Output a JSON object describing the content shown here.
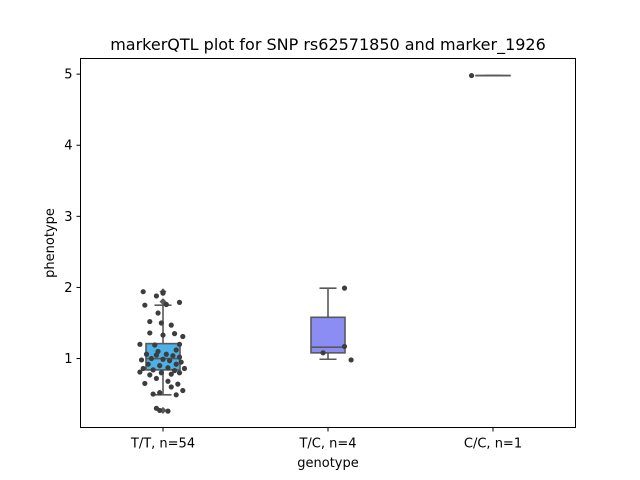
{
  "chart_data": {
    "type": "box",
    "title": "markerQTL plot for SNP rs62571850 and marker_1926",
    "xlabel": "genotype",
    "ylabel": "phenotype",
    "categories": [
      "T/T, n=54",
      "T/C, n=4",
      "C/C, n=1"
    ],
    "yticks": [
      1,
      2,
      3,
      4,
      5
    ],
    "ylim": [
      0.03,
      5.22
    ],
    "grid": false,
    "legend": "none",
    "box_colors": [
      "#4cb1e6",
      "#8c8cf5",
      "#8c8cf5"
    ],
    "edge_color": "#595959",
    "point_color": "#3d3d3d",
    "boxes": [
      {
        "q1": 0.84,
        "median": 1.0,
        "q3": 1.21,
        "whisker_low": 0.49,
        "whisker_high": 1.75,
        "outliers": [
          0.27,
          1.8,
          1.94
        ]
      },
      {
        "q1": 1.08,
        "median": 1.16,
        "q3": 1.58,
        "whisker_low": 0.99,
        "whisker_high": 1.99,
        "outliers": []
      },
      {
        "q1": 4.98,
        "median": 4.98,
        "q3": 4.98,
        "whisker_low": 4.98,
        "whisker_high": 4.98,
        "outliers": []
      }
    ],
    "points": [
      [
        {
          "x": -0.12,
          "y": 1.94
        },
        {
          "x": 0.0,
          "y": 1.92
        },
        {
          "x": -0.04,
          "y": 1.88
        },
        {
          "x": 0.1,
          "y": 1.79
        },
        {
          "x": -0.11,
          "y": 1.75
        },
        {
          "x": 0.02,
          "y": 1.76
        },
        {
          "x": -0.03,
          "y": 1.64
        },
        {
          "x": -0.08,
          "y": 1.52
        },
        {
          "x": -0.01,
          "y": 1.5
        },
        {
          "x": 0.05,
          "y": 1.47
        },
        {
          "x": -0.08,
          "y": 1.36
        },
        {
          "x": 0.07,
          "y": 1.35
        },
        {
          "x": 0.12,
          "y": 1.31
        },
        {
          "x": 0.0,
          "y": 1.33
        },
        {
          "x": -0.14,
          "y": 1.2
        },
        {
          "x": -0.05,
          "y": 1.19
        },
        {
          "x": 0.1,
          "y": 1.2
        },
        {
          "x": -0.03,
          "y": 1.1
        },
        {
          "x": 0.08,
          "y": 1.12
        },
        {
          "x": -0.1,
          "y": 1.06
        },
        {
          "x": -0.04,
          "y": 1.05
        },
        {
          "x": 0.02,
          "y": 1.06
        },
        {
          "x": 0.06,
          "y": 1.04
        },
        {
          "x": 0.1,
          "y": 1.02
        },
        {
          "x": -0.13,
          "y": 0.98
        },
        {
          "x": -0.07,
          "y": 1.0
        },
        {
          "x": 0.0,
          "y": 0.99
        },
        {
          "x": 0.04,
          "y": 0.97
        },
        {
          "x": 0.11,
          "y": 0.95
        },
        {
          "x": -0.09,
          "y": 0.92
        },
        {
          "x": -0.02,
          "y": 0.9
        },
        {
          "x": 0.08,
          "y": 0.92
        },
        {
          "x": -0.12,
          "y": 0.86
        },
        {
          "x": 0.03,
          "y": 0.87
        },
        {
          "x": 0.13,
          "y": 0.86
        },
        {
          "x": -0.06,
          "y": 0.84
        },
        {
          "x": 0.07,
          "y": 0.83
        },
        {
          "x": -0.14,
          "y": 0.81
        },
        {
          "x": -0.01,
          "y": 0.8
        },
        {
          "x": 0.1,
          "y": 0.8
        },
        {
          "x": -0.08,
          "y": 0.77
        },
        {
          "x": 0.05,
          "y": 0.78
        },
        {
          "x": -0.04,
          "y": 0.72
        },
        {
          "x": 0.03,
          "y": 0.68
        },
        {
          "x": 0.09,
          "y": 0.64
        },
        {
          "x": -0.11,
          "y": 0.65
        },
        {
          "x": 0.05,
          "y": 0.6
        },
        {
          "x": 0.12,
          "y": 0.55
        },
        {
          "x": -0.02,
          "y": 0.52
        },
        {
          "x": 0.08,
          "y": 0.49
        },
        {
          "x": -0.06,
          "y": 0.5
        },
        {
          "x": -0.02,
          "y": 0.27
        },
        {
          "x": 0.03,
          "y": 0.26
        },
        {
          "x": -0.04,
          "y": 0.3
        }
      ],
      [
        {
          "x": 0.1,
          "y": 1.99
        },
        {
          "x": 0.1,
          "y": 1.17
        },
        {
          "x": 0.14,
          "y": 0.98
        },
        {
          "x": -0.03,
          "y": 1.08
        }
      ],
      [
        {
          "x": -0.13,
          "y": 4.98
        }
      ]
    ]
  }
}
